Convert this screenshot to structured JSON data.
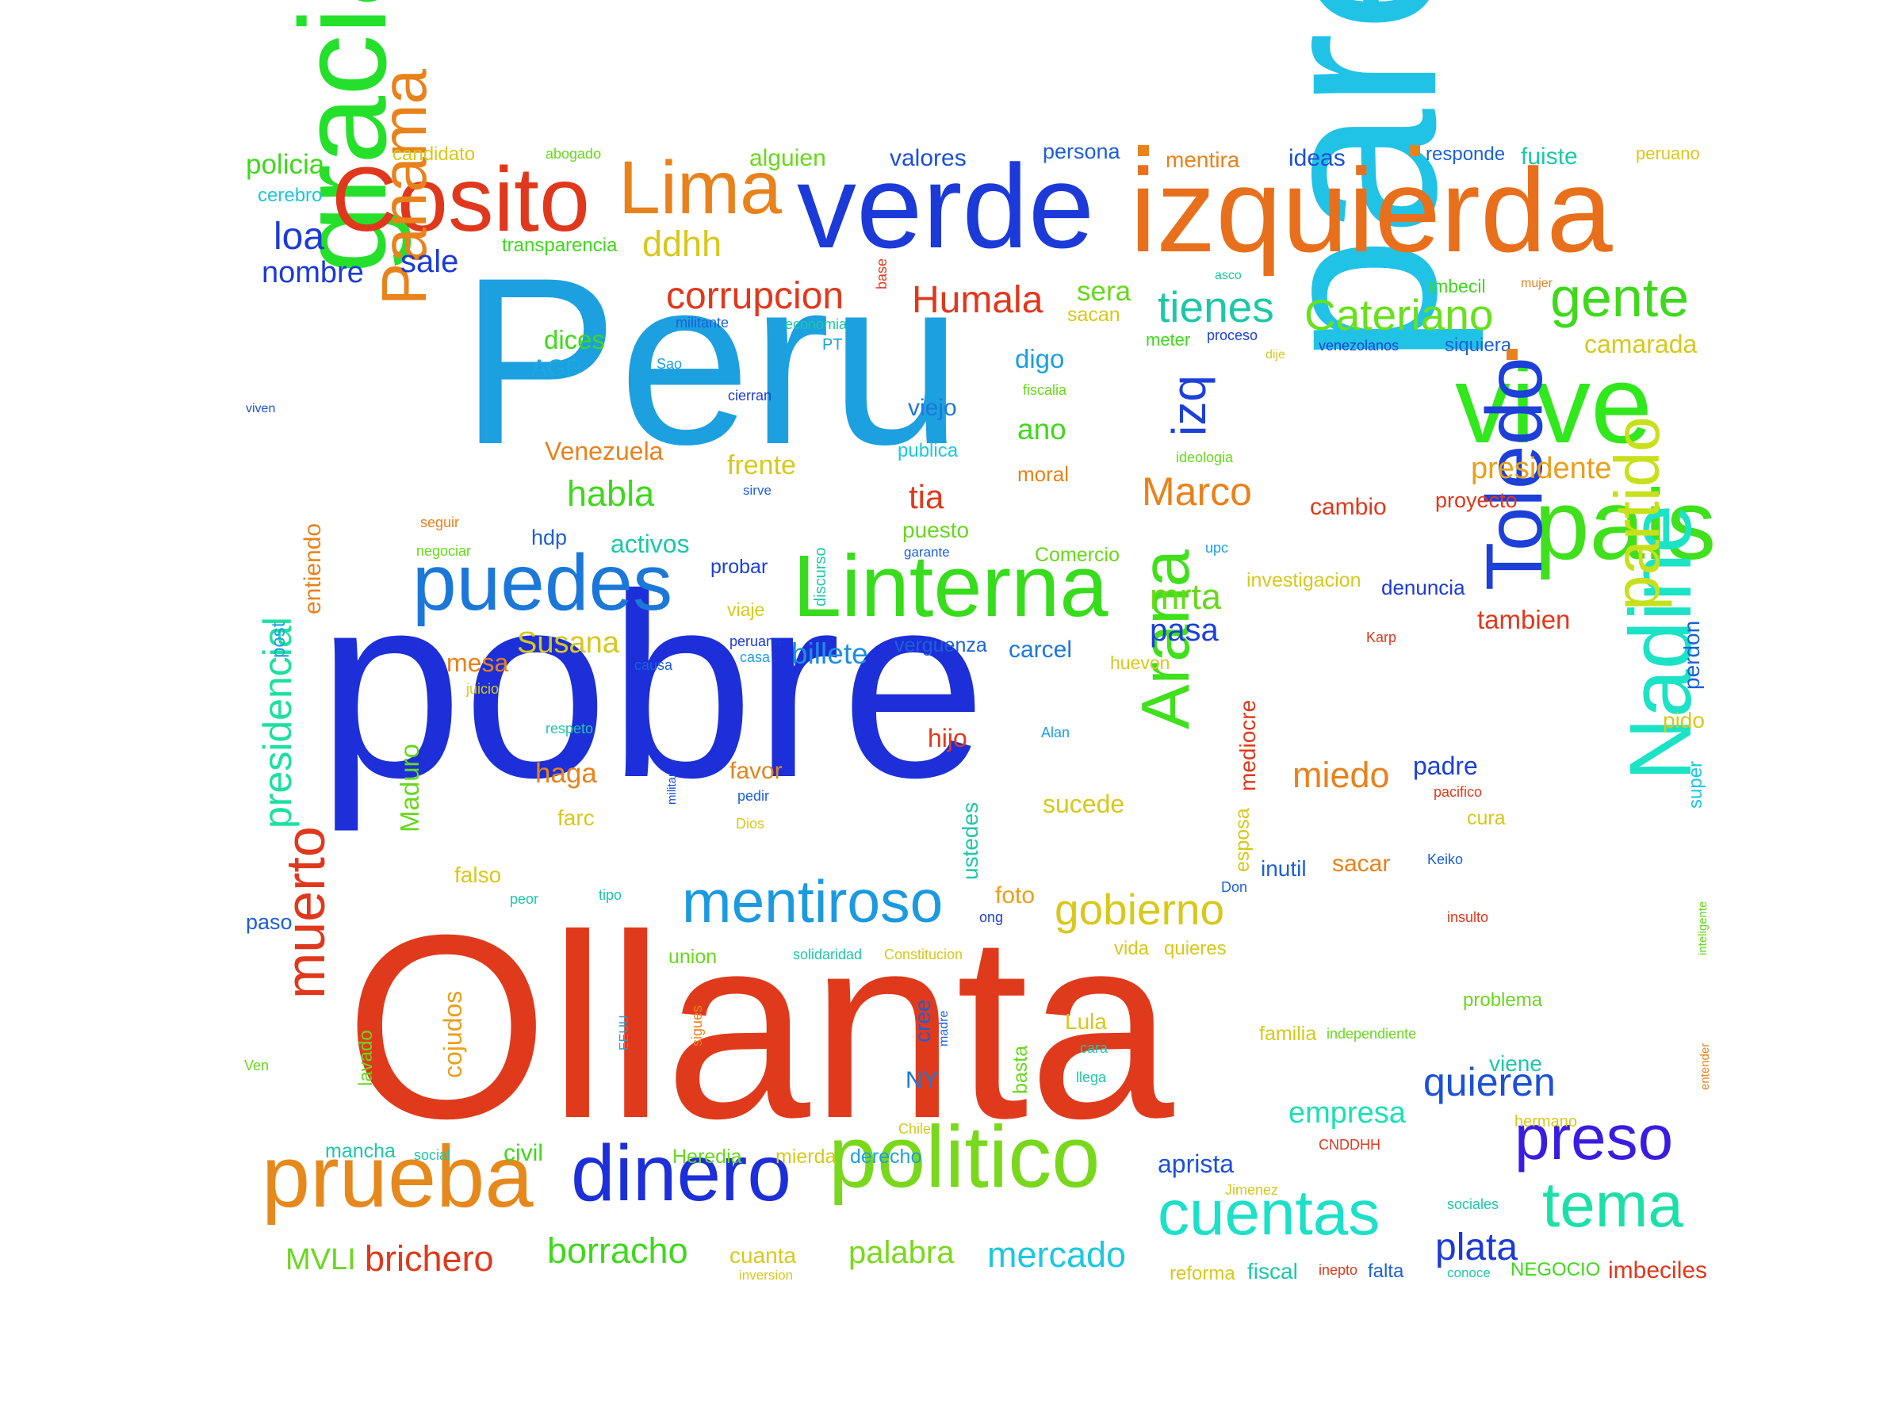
{
  "words": [
    {
      "text": "pobre",
      "color": "#1c2fd8"
    },
    {
      "text": "Ollanta",
      "color": "#e03a1c"
    },
    {
      "text": "Peru",
      "color": "#1ca0e0"
    },
    {
      "text": "pareja",
      "color": "#20c3e6"
    },
    {
      "text": "izquierda",
      "color": "#e8701c"
    },
    {
      "text": "verde",
      "color": "#1c3ad8"
    },
    {
      "text": "gracia",
      "color": "#25e02b"
    },
    {
      "text": "Cosito",
      "color": "#e0381c"
    },
    {
      "text": "Linterna",
      "color": "#37dc1c"
    },
    {
      "text": "vive",
      "color": "#30e81c"
    },
    {
      "text": "pais",
      "color": "#40e01c"
    },
    {
      "text": "Nadine",
      "color": "#1ce2c6"
    },
    {
      "text": "Toledo",
      "color": "#1c40d8"
    },
    {
      "text": "Lima",
      "color": "#e8821c"
    },
    {
      "text": "politico",
      "color": "#7ad81c"
    },
    {
      "text": "prueba",
      "color": "#e5891c"
    },
    {
      "text": "dinero",
      "color": "#1c2fd8"
    },
    {
      "text": "puedes",
      "color": "#1c78d8"
    },
    {
      "text": "Panama",
      "color": "#e8821c"
    },
    {
      "text": "mentiroso",
      "color": "#1c9ae0"
    },
    {
      "text": "Arana",
      "color": "#40e01c"
    },
    {
      "text": "partido",
      "color": "#c8e01c"
    },
    {
      "text": "gente",
      "color": "#40d81c"
    },
    {
      "text": "cuentas",
      "color": "#1ce0c8"
    },
    {
      "text": "tema",
      "color": "#1ce0a8"
    },
    {
      "text": "preso",
      "color": "#3a1ce0"
    },
    {
      "text": "muerto",
      "color": "#e0381c"
    },
    {
      "text": "gobierno",
      "color": "#d8c81c"
    },
    {
      "text": "Cateriano",
      "color": "#68e01c"
    },
    {
      "text": "tienes",
      "color": "#1cc8a8"
    },
    {
      "text": "presidencial",
      "color": "#1ce0a0"
    },
    {
      "text": "corrupcion",
      "color": "#e0381c"
    },
    {
      "text": "Humala",
      "color": "#e0381c"
    },
    {
      "text": "Marco",
      "color": "#e8821c"
    },
    {
      "text": "quieren",
      "color": "#1c50d8"
    },
    {
      "text": "borracho",
      "color": "#40d81c"
    },
    {
      "text": "mercado",
      "color": "#1cc8e0"
    },
    {
      "text": "palabra",
      "color": "#7ad81c"
    },
    {
      "text": "brichero",
      "color": "#e0381c"
    },
    {
      "text": "plata",
      "color": "#1c3ad8"
    },
    {
      "text": "empresa",
      "color": "#1ce0b8"
    },
    {
      "text": "habla",
      "color": "#40d81c"
    },
    {
      "text": "miedo",
      "color": "#e8821c"
    },
    {
      "text": "izq",
      "color": "#1c40d8"
    },
    {
      "text": "ddhh",
      "color": "#d8c81c"
    },
    {
      "text": "nombre",
      "color": "#1c3ad8"
    },
    {
      "text": "loa",
      "color": "#1c3ad8"
    },
    {
      "text": "sale",
      "color": "#1c3ad8"
    },
    {
      "text": "policia",
      "color": "#40d81c"
    },
    {
      "text": "cerebro",
      "color": "#1cc8d8"
    },
    {
      "text": "candidato",
      "color": "#d8c81c"
    },
    {
      "text": "abogado",
      "color": "#68d81c"
    },
    {
      "text": "alguien",
      "color": "#68d81c"
    },
    {
      "text": "valores",
      "color": "#1c50d8"
    },
    {
      "text": "persona",
      "color": "#1c60d8"
    },
    {
      "text": "mentira",
      "color": "#e8821c"
    },
    {
      "text": "ideas",
      "color": "#1c50d8"
    },
    {
      "text": "responde",
      "color": "#1c60d8"
    },
    {
      "text": "fuiste",
      "color": "#1cc8a8"
    },
    {
      "text": "peruano",
      "color": "#d8c81c"
    },
    {
      "text": "transparencia",
      "color": "#40d81c"
    },
    {
      "text": "sera",
      "color": "#68d81c"
    },
    {
      "text": "sacan",
      "color": "#d8c81c"
    },
    {
      "text": "asco",
      "color": "#1cc8a8"
    },
    {
      "text": "imbecil",
      "color": "#40d81c"
    },
    {
      "text": "mujer",
      "color": "#e8821c"
    },
    {
      "text": "camarada",
      "color": "#d8c81c"
    },
    {
      "text": "dices",
      "color": "#40d81c"
    },
    {
      "text": "AGP",
      "color": "#1ca8e0"
    },
    {
      "text": "militante",
      "color": "#1c60d8"
    },
    {
      "text": "economia",
      "color": "#1cc8a8"
    },
    {
      "text": "PT",
      "color": "#1ca0e0"
    },
    {
      "text": "base",
      "color": "#e0381c"
    },
    {
      "text": "meter",
      "color": "#40d81c"
    },
    {
      "text": "proceso",
      "color": "#1c40d8"
    },
    {
      "text": "dije",
      "color": "#d8c81c"
    },
    {
      "text": "venezolanos",
      "color": "#1c40d8"
    },
    {
      "text": "siquiera",
      "color": "#1c60d8"
    },
    {
      "text": "digo",
      "color": "#1ca0e0"
    },
    {
      "text": "fiscalia",
      "color": "#68d81c"
    },
    {
      "text": "Sao",
      "color": "#1ca0e0"
    },
    {
      "text": "cierran",
      "color": "#1c3ad8"
    },
    {
      "text": "viven",
      "color": "#1c50d8"
    },
    {
      "text": "viejo",
      "color": "#1c78d8"
    },
    {
      "text": "publica",
      "color": "#1cc8e0"
    },
    {
      "text": "ano",
      "color": "#40d81c"
    },
    {
      "text": "moral",
      "color": "#e8821c"
    },
    {
      "text": "ideologia",
      "color": "#68d81c"
    },
    {
      "text": "presidente",
      "color": "#e8a01c"
    },
    {
      "text": "proyecto",
      "color": "#e0381c"
    },
    {
      "text": "cambio",
      "color": "#e0381c"
    },
    {
      "text": "Venezuela",
      "color": "#e8821c"
    },
    {
      "text": "frente",
      "color": "#d8c81c"
    },
    {
      "text": "sirve",
      "color": "#1c60d8"
    },
    {
      "text": "tia",
      "color": "#e0381c"
    },
    {
      "text": "puesto",
      "color": "#68d81c"
    },
    {
      "text": "seguir",
      "color": "#e8821c"
    },
    {
      "text": "negociar",
      "color": "#68d81c"
    },
    {
      "text": "hdp",
      "color": "#1c60d8"
    },
    {
      "text": "activos",
      "color": "#1cc8a8"
    },
    {
      "text": "discurso",
      "color": "#1cc8a8"
    },
    {
      "text": "garante",
      "color": "#1c60d8"
    },
    {
      "text": "Comercio",
      "color": "#68d81c"
    },
    {
      "text": "upc",
      "color": "#1ca0e0"
    },
    {
      "text": "investigacion",
      "color": "#d8c81c"
    },
    {
      "text": "denuncia",
      "color": "#1c3ad8"
    },
    {
      "text": "entiendo",
      "color": "#e8821c"
    },
    {
      "text": "probar",
      "color": "#1c40d8"
    },
    {
      "text": "mrta",
      "color": "#68d81c"
    },
    {
      "text": "pasa",
      "color": "#1c40d8"
    },
    {
      "text": "tambien",
      "color": "#e0381c"
    },
    {
      "text": "post",
      "color": "#1ca0e0"
    },
    {
      "text": "viaje",
      "color": "#d8c81c"
    },
    {
      "text": "billete",
      "color": "#1c90e0"
    },
    {
      "text": "Susana",
      "color": "#d8c81c"
    },
    {
      "text": "peruana",
      "color": "#1c3ad8"
    },
    {
      "text": "casa",
      "color": "#1ca0e0"
    },
    {
      "text": "verguenza",
      "color": "#1c60d8"
    },
    {
      "text": "carcel",
      "color": "#1c78d8"
    },
    {
      "text": "Karp",
      "color": "#e0381c"
    },
    {
      "text": "perdon",
      "color": "#1c60d8"
    },
    {
      "text": "mesa",
      "color": "#e8821c"
    },
    {
      "text": "causa",
      "color": "#1c60d8"
    },
    {
      "text": "juicio",
      "color": "#d8c81c"
    },
    {
      "text": "huevon",
      "color": "#d8c81c"
    },
    {
      "text": "mediocre",
      "color": "#e0381c"
    },
    {
      "text": "pido",
      "color": "#d8c81c"
    },
    {
      "text": "Maduro",
      "color": "#68d81c"
    },
    {
      "text": "respeto",
      "color": "#1cc8a8"
    },
    {
      "text": "hijo",
      "color": "#e0381c"
    },
    {
      "text": "Alan",
      "color": "#1ca0e0"
    },
    {
      "text": "padre",
      "color": "#1c40d8"
    },
    {
      "text": "pacifico",
      "color": "#e0381c"
    },
    {
      "text": "super",
      "color": "#1cc8e0"
    },
    {
      "text": "haga",
      "color": "#e8821c"
    },
    {
      "text": "militar",
      "color": "#1c50d8"
    },
    {
      "text": "favor",
      "color": "#e8821c"
    },
    {
      "text": "pedir",
      "color": "#1c60d8"
    },
    {
      "text": "sucede",
      "color": "#d8c81c"
    },
    {
      "text": "cura",
      "color": "#d8c81c"
    },
    {
      "text": "farc",
      "color": "#d8c81c"
    },
    {
      "text": "Dios",
      "color": "#d8c81c"
    },
    {
      "text": "ustedes",
      "color": "#1cc8a8"
    },
    {
      "text": "esposa",
      "color": "#d8c81c"
    },
    {
      "text": "inutil",
      "color": "#1c60d8"
    },
    {
      "text": "sacar",
      "color": "#e8821c"
    },
    {
      "text": "Keiko",
      "color": "#1c60d8"
    },
    {
      "text": "falso",
      "color": "#d8c81c"
    },
    {
      "text": "inteligente",
      "color": "#68d81c"
    },
    {
      "text": "paso",
      "color": "#1c60d8"
    },
    {
      "text": "peor",
      "color": "#1cc8a8"
    },
    {
      "text": "tipo",
      "color": "#1cc8a8"
    },
    {
      "text": "foto",
      "color": "#e8a01c"
    },
    {
      "text": "ong",
      "color": "#1c40d8"
    },
    {
      "text": "Don",
      "color": "#1c60d8"
    },
    {
      "text": "insulto",
      "color": "#e0381c"
    },
    {
      "text": "union",
      "color": "#68d81c"
    },
    {
      "text": "solidaridad",
      "color": "#1cc8a8"
    },
    {
      "text": "Constitucion",
      "color": "#d8c81c"
    },
    {
      "text": "vida",
      "color": "#d8c81c"
    },
    {
      "text": "quieres",
      "color": "#d8c81c"
    },
    {
      "text": "problema",
      "color": "#68d81c"
    },
    {
      "text": "cojudos",
      "color": "#e8a01c"
    },
    {
      "text": "sigues",
      "color": "#e8821c"
    },
    {
      "text": "Lula",
      "color": "#d8c81c"
    },
    {
      "text": "familia",
      "color": "#d8c81c"
    },
    {
      "text": "independiente",
      "color": "#68d81c"
    },
    {
      "text": "cree",
      "color": "#1c60d8"
    },
    {
      "text": "madre",
      "color": "#1c60d8"
    },
    {
      "text": "cara",
      "color": "#1cc8a8"
    },
    {
      "text": "EEUU",
      "color": "#1ca0e0"
    },
    {
      "text": "NY",
      "color": "#1c78d8"
    },
    {
      "text": "Ven",
      "color": "#68d81c"
    },
    {
      "text": "lavado",
      "color": "#68d81c"
    },
    {
      "text": "basta",
      "color": "#68d81c"
    },
    {
      "text": "llega",
      "color": "#1cc8a8"
    },
    {
      "text": "viene",
      "color": "#1cc8a8"
    },
    {
      "text": "entender",
      "color": "#e8821c"
    },
    {
      "text": "Chile",
      "color": "#d8c81c"
    },
    {
      "text": "hermano",
      "color": "#d8c81c"
    },
    {
      "text": "mancha",
      "color": "#1cc8a8"
    },
    {
      "text": "social",
      "color": "#1cc8a8"
    },
    {
      "text": "civil",
      "color": "#40d81c"
    },
    {
      "text": "Heredia",
      "color": "#68d81c"
    },
    {
      "text": "mierda",
      "color": "#d8c81c"
    },
    {
      "text": "derecho",
      "color": "#1ca0e0"
    },
    {
      "text": "aprista",
      "color": "#1c50d8"
    },
    {
      "text": "CNDDHH",
      "color": "#e0381c"
    },
    {
      "text": "Jimenez",
      "color": "#d8c81c"
    },
    {
      "text": "sociales",
      "color": "#1cc8a8"
    },
    {
      "text": "MVLI",
      "color": "#68d81c"
    },
    {
      "text": "cuanta",
      "color": "#d8c81c"
    },
    {
      "text": "inversion",
      "color": "#d8c81c"
    },
    {
      "text": "reforma",
      "color": "#d8c81c"
    },
    {
      "text": "fiscal",
      "color": "#1cc8a8"
    },
    {
      "text": "inepto",
      "color": "#e0381c"
    },
    {
      "text": "falta",
      "color": "#1c60d8"
    },
    {
      "text": "conoce",
      "color": "#1cc8a8"
    },
    {
      "text": "NEGOCIO",
      "color": "#40d81c"
    },
    {
      "text": "imbeciles",
      "color": "#e0381c"
    }
  ],
  "square_colors": [
    "#e8821c",
    "#e8821c",
    "#e8821c"
  ]
}
